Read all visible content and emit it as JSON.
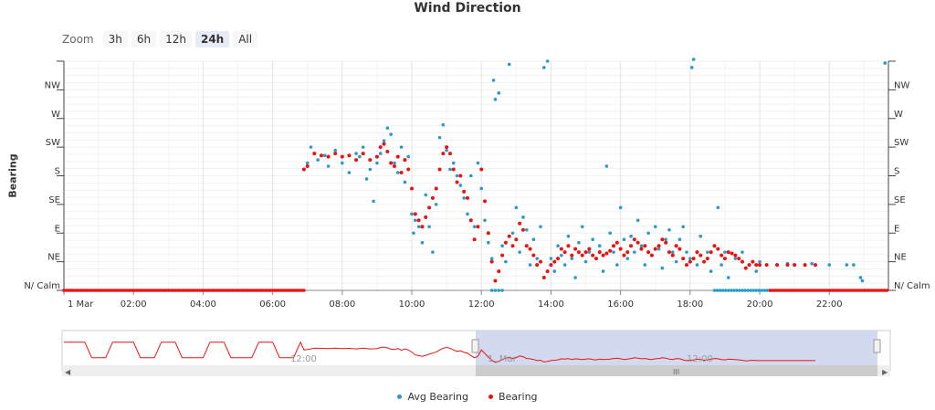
{
  "colors": {
    "avg": "#2b9ac8",
    "bearing": "#ee1111",
    "navigator_fill": "#c9d3ec",
    "grid": "#e6e6e6"
  },
  "zoom": {
    "label": "Zoom",
    "buttons": [
      "3h",
      "6h",
      "12h",
      "24h",
      "All"
    ],
    "active": "24h"
  },
  "navigator": {
    "tick_labels": [
      "12:00",
      "1. Mar",
      "12:00"
    ],
    "selected_range": "1 Mar 00:00 – 23:59"
  },
  "chart_data": {
    "type": "scatter",
    "title": "Wind Direction",
    "xlabel": "",
    "ylabel": "Bearing",
    "x_unit": "hours",
    "xlim": [
      0,
      23.7
    ],
    "ylim": [
      0,
      360
    ],
    "x_ticks": [
      0,
      2,
      4,
      6,
      8,
      10,
      12,
      14,
      16,
      18,
      20,
      22
    ],
    "x_tick_labels": [
      "1 Mar",
      "02:00",
      "04:00",
      "06:00",
      "08:00",
      "10:00",
      "12:00",
      "14:00",
      "16:00",
      "18:00",
      "20:00",
      "22:00"
    ],
    "y_ticks": [
      0,
      45,
      90,
      135,
      180,
      225,
      270,
      315
    ],
    "y_tick_labels": [
      "N/ Calm",
      "NE",
      "E",
      "SE",
      "S",
      "SW",
      "W",
      "NW"
    ],
    "grid": true,
    "legend_position": "bottom-center",
    "series": [
      {
        "name": "Avg Bearing",
        "color": "#2b9ac8",
        "points": [
          [
            6.9,
            190
          ],
          [
            7.0,
            200
          ],
          [
            7.1,
            225
          ],
          [
            7.2,
            215
          ],
          [
            7.3,
            205
          ],
          [
            7.5,
            212
          ],
          [
            7.6,
            195
          ],
          [
            7.8,
            220
          ],
          [
            8.0,
            200
          ],
          [
            8.2,
            185
          ],
          [
            8.4,
            215
          ],
          [
            8.5,
            210
          ],
          [
            8.6,
            225
          ],
          [
            8.7,
            175
          ],
          [
            8.8,
            190
          ],
          [
            8.9,
            140
          ],
          [
            9.0,
            200
          ],
          [
            9.1,
            215
          ],
          [
            9.2,
            235
          ],
          [
            9.3,
            255
          ],
          [
            9.4,
            245
          ],
          [
            9.5,
            200
          ],
          [
            9.6,
            185
          ],
          [
            9.7,
            225
          ],
          [
            9.8,
            170
          ],
          [
            9.9,
            210
          ],
          [
            10.0,
            120
          ],
          [
            10.05,
            90
          ],
          [
            10.1,
            110
          ],
          [
            10.2,
            100
          ],
          [
            10.3,
            75
          ],
          [
            10.4,
            150
          ],
          [
            10.5,
            100
          ],
          [
            10.6,
            60
          ],
          [
            10.7,
            135
          ],
          [
            10.8,
            240
          ],
          [
            10.9,
            260
          ],
          [
            11.0,
            220
          ],
          [
            11.1,
            190
          ],
          [
            11.2,
            200
          ],
          [
            11.3,
            180
          ],
          [
            11.4,
            165
          ],
          [
            11.5,
            145
          ],
          [
            11.6,
            120
          ],
          [
            11.7,
            180
          ],
          [
            11.8,
            100
          ],
          [
            11.9,
            200
          ],
          [
            12.0,
            160
          ],
          [
            12.1,
            110
          ],
          [
            12.2,
            75
          ],
          [
            12.3,
            50
          ],
          [
            12.35,
            330
          ],
          [
            12.4,
            300
          ],
          [
            12.5,
            310
          ],
          [
            12.6,
            70
          ],
          [
            12.7,
            45
          ],
          [
            12.8,
            355
          ],
          [
            12.9,
            90
          ],
          [
            13.0,
            130
          ],
          [
            13.1,
            60
          ],
          [
            13.2,
            115
          ],
          [
            13.3,
            95
          ],
          [
            13.4,
            40
          ],
          [
            13.5,
            80
          ],
          [
            13.6,
            50
          ],
          [
            13.7,
            100
          ],
          [
            13.8,
            350
          ],
          [
            13.9,
            360
          ],
          [
            14.0,
            50
          ],
          [
            14.1,
            30
          ],
          [
            14.2,
            70
          ],
          [
            14.3,
            55
          ],
          [
            14.4,
            40
          ],
          [
            14.5,
            85
          ],
          [
            14.6,
            50
          ],
          [
            14.7,
            20
          ],
          [
            14.8,
            75
          ],
          [
            14.9,
            100
          ],
          [
            15.0,
            45
          ],
          [
            15.1,
            60
          ],
          [
            15.2,
            80
          ],
          [
            15.3,
            50
          ],
          [
            15.4,
            70
          ],
          [
            15.5,
            30
          ],
          [
            15.6,
            195
          ],
          [
            15.7,
            90
          ],
          [
            15.8,
            60
          ],
          [
            15.9,
            40
          ],
          [
            16.0,
            130
          ],
          [
            16.1,
            80
          ],
          [
            16.2,
            50
          ],
          [
            16.3,
            85
          ],
          [
            16.4,
            60
          ],
          [
            16.5,
            110
          ],
          [
            16.6,
            70
          ],
          [
            16.7,
            40
          ],
          [
            16.8,
            90
          ],
          [
            16.9,
            55
          ],
          [
            17.0,
            100
          ],
          [
            17.1,
            65
          ],
          [
            17.2,
            35
          ],
          [
            17.3,
            80
          ],
          [
            17.4,
            95
          ],
          [
            17.5,
            60
          ],
          [
            17.6,
            45
          ],
          [
            17.7,
            80
          ],
          [
            17.8,
            100
          ],
          [
            17.9,
            60
          ],
          [
            18.0,
            50
          ],
          [
            18.05,
            350
          ],
          [
            18.1,
            365
          ],
          [
            18.2,
            40
          ],
          [
            18.3,
            85
          ],
          [
            18.5,
            60
          ],
          [
            18.6,
            30
          ],
          [
            18.7,
            70
          ],
          [
            18.8,
            130
          ],
          [
            18.9,
            40
          ],
          [
            19.0,
            60
          ],
          [
            19.1,
            20
          ],
          [
            19.3,
            50
          ],
          [
            19.5,
            60
          ],
          [
            19.7,
            40
          ],
          [
            19.9,
            30
          ],
          [
            20.0,
            45
          ],
          [
            20.2,
            40
          ],
          [
            20.5,
            40
          ],
          [
            20.8,
            42
          ],
          [
            21.0,
            40
          ],
          [
            21.5,
            42
          ],
          [
            22.0,
            40
          ],
          [
            22.5,
            40
          ],
          [
            22.7,
            40
          ],
          [
            22.9,
            20
          ],
          [
            22.95,
            15
          ],
          [
            23.6,
            357
          ]
        ]
      },
      {
        "name": "Bearing",
        "color": "#ee1111",
        "points": [
          [
            6.9,
            190
          ],
          [
            7.0,
            195
          ],
          [
            7.2,
            215
          ],
          [
            7.4,
            212
          ],
          [
            7.6,
            210
          ],
          [
            7.8,
            215
          ],
          [
            8.0,
            210
          ],
          [
            8.2,
            212
          ],
          [
            8.4,
            205
          ],
          [
            8.6,
            215
          ],
          [
            8.8,
            205
          ],
          [
            9.0,
            210
          ],
          [
            9.1,
            225
          ],
          [
            9.2,
            230
          ],
          [
            9.3,
            218
          ],
          [
            9.4,
            200
          ],
          [
            9.5,
            195
          ],
          [
            9.6,
            210
          ],
          [
            9.7,
            185
          ],
          [
            9.8,
            205
          ],
          [
            9.9,
            190
          ],
          [
            10.0,
            160
          ],
          [
            10.1,
            120
          ],
          [
            10.2,
            110
          ],
          [
            10.3,
            100
          ],
          [
            10.4,
            115
          ],
          [
            10.5,
            130
          ],
          [
            10.6,
            145
          ],
          [
            10.7,
            160
          ],
          [
            10.8,
            190
          ],
          [
            10.9,
            215
          ],
          [
            11.0,
            225
          ],
          [
            11.1,
            215
          ],
          [
            11.2,
            190
          ],
          [
            11.3,
            170
          ],
          [
            11.4,
            180
          ],
          [
            11.5,
            155
          ],
          [
            11.6,
            145
          ],
          [
            11.7,
            110
          ],
          [
            11.8,
            80
          ],
          [
            11.9,
            100
          ],
          [
            12.0,
            190
          ],
          [
            12.1,
            140
          ],
          [
            12.2,
            90
          ],
          [
            12.3,
            45
          ],
          [
            12.4,
            15
          ],
          [
            12.5,
            30
          ],
          [
            12.6,
            55
          ],
          [
            12.7,
            75
          ],
          [
            12.8,
            85
          ],
          [
            12.9,
            70
          ],
          [
            13.0,
            80
          ],
          [
            13.1,
            105
          ],
          [
            13.2,
            95
          ],
          [
            13.3,
            70
          ],
          [
            13.4,
            65
          ],
          [
            13.5,
            55
          ],
          [
            13.6,
            40
          ],
          [
            13.7,
            45
          ],
          [
            13.8,
            20
          ],
          [
            13.9,
            30
          ],
          [
            14.0,
            40
          ],
          [
            14.1,
            45
          ],
          [
            14.2,
            50
          ],
          [
            14.3,
            65
          ],
          [
            14.4,
            60
          ],
          [
            14.5,
            70
          ],
          [
            14.6,
            55
          ],
          [
            14.7,
            65
          ],
          [
            14.8,
            60
          ],
          [
            14.9,
            55
          ],
          [
            15.0,
            60
          ],
          [
            15.1,
            65
          ],
          [
            15.2,
            55
          ],
          [
            15.3,
            50
          ],
          [
            15.4,
            60
          ],
          [
            15.5,
            55
          ],
          [
            15.6,
            58
          ],
          [
            15.7,
            62
          ],
          [
            15.8,
            70
          ],
          [
            15.9,
            75
          ],
          [
            16.0,
            65
          ],
          [
            16.1,
            55
          ],
          [
            16.2,
            60
          ],
          [
            16.3,
            70
          ],
          [
            16.4,
            80
          ],
          [
            16.5,
            75
          ],
          [
            16.6,
            65
          ],
          [
            16.7,
            70
          ],
          [
            16.8,
            60
          ],
          [
            16.9,
            55
          ],
          [
            17.0,
            65
          ],
          [
            17.1,
            70
          ],
          [
            17.2,
            80
          ],
          [
            17.3,
            75
          ],
          [
            17.4,
            60
          ],
          [
            17.5,
            55
          ],
          [
            17.6,
            70
          ],
          [
            17.7,
            65
          ],
          [
            17.8,
            50
          ],
          [
            17.9,
            40
          ],
          [
            18.0,
            45
          ],
          [
            18.1,
            50
          ],
          [
            18.2,
            60
          ],
          [
            18.3,
            55
          ],
          [
            18.4,
            45
          ],
          [
            18.5,
            50
          ],
          [
            18.6,
            60
          ],
          [
            18.7,
            70
          ],
          [
            18.8,
            65
          ],
          [
            18.9,
            55
          ],
          [
            19.0,
            50
          ],
          [
            19.1,
            60
          ],
          [
            19.2,
            58
          ],
          [
            19.3,
            55
          ],
          [
            19.4,
            50
          ],
          [
            19.5,
            45
          ],
          [
            19.6,
            35
          ],
          [
            19.7,
            40
          ],
          [
            19.8,
            45
          ],
          [
            19.9,
            40
          ],
          [
            20.0,
            40
          ],
          [
            20.2,
            40
          ],
          [
            20.5,
            40
          ],
          [
            20.8,
            40
          ],
          [
            21.0,
            40
          ],
          [
            21.3,
            40
          ],
          [
            21.6,
            40
          ]
        ]
      }
    ]
  }
}
